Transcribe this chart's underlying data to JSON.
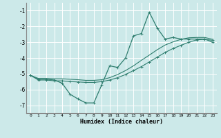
{
  "xlabel": "Humidex (Indice chaleur)",
  "ylabel": "",
  "xlim": [
    -0.5,
    23.5
  ],
  "ylim": [
    -7.5,
    -0.5
  ],
  "yticks": [
    -7,
    -6,
    -5,
    -4,
    -3,
    -2,
    -1
  ],
  "xticks": [
    0,
    1,
    2,
    3,
    4,
    5,
    6,
    7,
    8,
    9,
    10,
    11,
    12,
    13,
    14,
    15,
    16,
    17,
    18,
    19,
    20,
    21,
    22,
    23
  ],
  "bg_color": "#cce9e9",
  "line_color": "#2e7d6e",
  "grid_color": "#ffffff",
  "line1_x": [
    0,
    1,
    2,
    3,
    4,
    5,
    6,
    7,
    8,
    9,
    10,
    11,
    12,
    13,
    14,
    15,
    16,
    17,
    18,
    19,
    20,
    21,
    22,
    23
  ],
  "line1_y": [
    -5.1,
    -5.35,
    -5.35,
    -5.4,
    -5.6,
    -6.3,
    -6.6,
    -6.85,
    -6.85,
    -5.7,
    -4.5,
    -4.6,
    -4.0,
    -2.6,
    -2.45,
    -1.1,
    -2.1,
    -2.8,
    -2.7,
    -2.8,
    -2.8,
    -2.8,
    -2.8,
    -3.0
  ],
  "line2_x": [
    0,
    1,
    2,
    3,
    4,
    5,
    6,
    7,
    8,
    9,
    10,
    11,
    12,
    13,
    14,
    15,
    16,
    17,
    18,
    19,
    20,
    21,
    22,
    23
  ],
  "line2_y": [
    -5.1,
    -5.4,
    -5.4,
    -5.45,
    -5.45,
    -5.5,
    -5.52,
    -5.55,
    -5.55,
    -5.5,
    -5.4,
    -5.25,
    -5.05,
    -4.8,
    -4.55,
    -4.25,
    -3.95,
    -3.65,
    -3.4,
    -3.2,
    -3.0,
    -2.85,
    -2.82,
    -2.88
  ],
  "line3_x": [
    0,
    1,
    2,
    3,
    4,
    5,
    6,
    7,
    8,
    9,
    10,
    11,
    12,
    13,
    14,
    15,
    16,
    17,
    18,
    19,
    20,
    21,
    22,
    23
  ],
  "line3_y": [
    -5.1,
    -5.3,
    -5.3,
    -5.32,
    -5.32,
    -5.35,
    -5.38,
    -5.42,
    -5.42,
    -5.38,
    -5.25,
    -5.05,
    -4.8,
    -4.5,
    -4.15,
    -3.82,
    -3.48,
    -3.18,
    -2.98,
    -2.82,
    -2.72,
    -2.7,
    -2.7,
    -2.82
  ]
}
